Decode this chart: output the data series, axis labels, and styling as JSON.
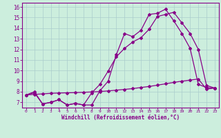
{
  "xlabel": "Windchill (Refroidissement éolien,°C)",
  "background_color": "#cceedd",
  "grid_color": "#aacccc",
  "line_color": "#880088",
  "xlim_min": -0.5,
  "xlim_max": 23.5,
  "ylim_min": 6.5,
  "ylim_max": 16.4,
  "xticks": [
    0,
    1,
    2,
    3,
    4,
    5,
    6,
    7,
    8,
    9,
    10,
    11,
    12,
    13,
    14,
    15,
    16,
    17,
    18,
    19,
    20,
    21,
    22,
    23
  ],
  "yticks": [
    7,
    8,
    9,
    10,
    11,
    12,
    13,
    14,
    15,
    16
  ],
  "line1_x": [
    0,
    1,
    2,
    3,
    4,
    5,
    6,
    7,
    8,
    9,
    10,
    11,
    12,
    13,
    14,
    15,
    16,
    17,
    18,
    19,
    20,
    21,
    22,
    23
  ],
  "line1_y": [
    7.7,
    8.0,
    6.85,
    7.0,
    7.25,
    6.75,
    6.9,
    6.75,
    6.75,
    8.1,
    9.0,
    11.5,
    13.5,
    13.2,
    13.8,
    15.3,
    15.4,
    15.8,
    14.7,
    13.5,
    12.1,
    8.7,
    8.4,
    8.35
  ],
  "line2_x": [
    0,
    1,
    2,
    3,
    4,
    5,
    6,
    7,
    8,
    9,
    10,
    11,
    12,
    13,
    14,
    15,
    16,
    17,
    18,
    19,
    20,
    21,
    22,
    23
  ],
  "line2_y": [
    7.7,
    7.9,
    6.85,
    7.0,
    7.25,
    6.75,
    6.9,
    6.75,
    7.9,
    8.7,
    9.95,
    11.3,
    12.1,
    12.7,
    13.1,
    13.9,
    15.1,
    15.3,
    15.5,
    14.5,
    13.5,
    12.0,
    8.6,
    8.35
  ],
  "line3_x": [
    0,
    1,
    2,
    3,
    4,
    5,
    6,
    7,
    8,
    9,
    10,
    11,
    12,
    13,
    14,
    15,
    16,
    17,
    18,
    19,
    20,
    21,
    22,
    23
  ],
  "line3_y": [
    7.7,
    7.75,
    7.8,
    7.85,
    7.88,
    7.9,
    7.92,
    7.95,
    7.98,
    8.02,
    8.08,
    8.15,
    8.22,
    8.3,
    8.4,
    8.5,
    8.62,
    8.75,
    8.88,
    9.0,
    9.1,
    9.2,
    8.25,
    8.35
  ]
}
